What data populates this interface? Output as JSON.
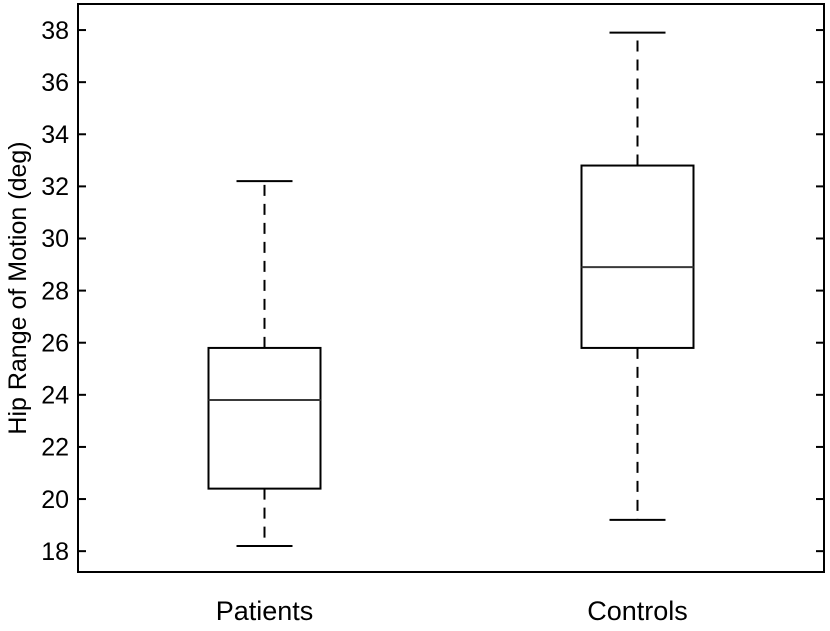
{
  "figure": {
    "background": "#ffffff",
    "line_color": "#000000",
    "median_color": "#3a3a3a"
  },
  "chart_data": {
    "type": "boxplot",
    "title": "",
    "xlabel": "",
    "ylabel": "Hip Range of Motion (deg)",
    "ylim": [
      17.2,
      39.0
    ],
    "yticks": [
      18,
      20,
      22,
      24,
      26,
      28,
      30,
      32,
      34,
      36,
      38
    ],
    "grid": false,
    "legend": null,
    "whisker_style": "dashed",
    "categories": [
      "Patients",
      "Controls"
    ],
    "series": [
      {
        "name": "Patients",
        "whisker_low": 18.2,
        "q1": 20.4,
        "median": 23.8,
        "q3": 25.8,
        "whisker_high": 32.2,
        "outliers": []
      },
      {
        "name": "Controls",
        "whisker_low": 19.2,
        "q1": 25.8,
        "median": 28.9,
        "q3": 32.8,
        "whisker_high": 37.9,
        "outliers": []
      }
    ]
  }
}
